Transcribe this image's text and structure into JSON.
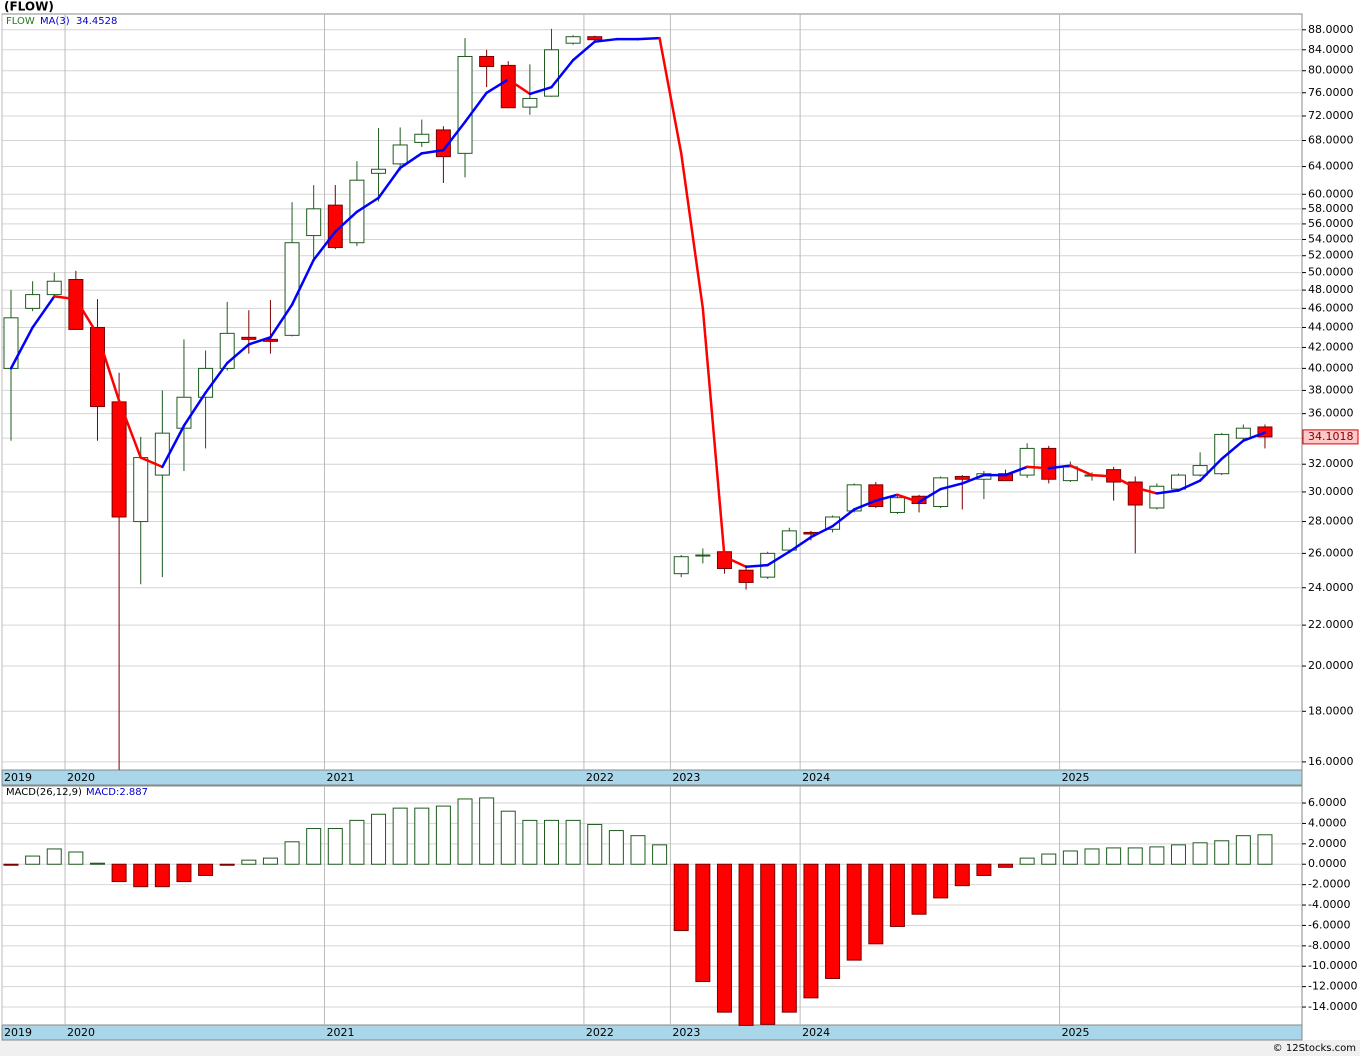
{
  "chart_data": [
    {
      "type": "candlestick",
      "title": "(FLOW)",
      "series_name": "FLOW",
      "yscale": "log",
      "grid": true,
      "up_color": "#ffffff",
      "up_stroke": "#1f5a1f",
      "down_color": "#ff0000",
      "down_stroke": "#7a0000",
      "categories": [
        "2019",
        null,
        null,
        "2020",
        null,
        null,
        null,
        null,
        null,
        null,
        null,
        null,
        null,
        null,
        null,
        "2021",
        null,
        null,
        null,
        null,
        null,
        null,
        null,
        null,
        null,
        null,
        null,
        "2022",
        null,
        null,
        null,
        "2023",
        null,
        null,
        null,
        null,
        null,
        "2024",
        null,
        null,
        null,
        null,
        null,
        null,
        null,
        null,
        null,
        null,
        null,
        "2025",
        null,
        null,
        null,
        null,
        null,
        null,
        null,
        null,
        null
      ],
      "open": [
        40,
        46,
        47.5,
        49.2,
        44,
        37,
        28,
        31.2,
        34.8,
        37.4,
        40,
        43,
        42.8,
        43.2,
        54.5,
        58.5,
        53.6,
        63,
        64.4,
        67.7,
        69.7,
        66,
        82.7,
        81,
        73.5,
        75.4,
        85.3,
        86.6,
        null,
        null,
        null,
        24.8,
        25.9,
        26.1,
        25,
        24.6,
        26.2,
        27.3,
        27.5,
        28.7,
        30.5,
        28.6,
        29.7,
        29,
        31.1,
        30.9,
        31.3,
        31.2,
        33.2,
        30.8,
        31.2,
        31.6,
        30.7,
        28.9,
        30.2,
        31.2,
        31.3,
        34,
        34.9
      ],
      "high": [
        48,
        49,
        50,
        50.2,
        47,
        39.6,
        34.1,
        38,
        42.8,
        41.7,
        46.7,
        45.8,
        46.9,
        58.9,
        61.3,
        61.3,
        64.8,
        70,
        70.1,
        71.4,
        70.3,
        86.3,
        84,
        81.8,
        81.2,
        88.2,
        86.9,
        86.8,
        null,
        null,
        null,
        25.9,
        26.3,
        26.2,
        25.3,
        26.1,
        27.6,
        27.4,
        28.4,
        30.6,
        30.7,
        29.8,
        29.8,
        31.1,
        31.2,
        31.5,
        31.6,
        33.6,
        33.4,
        32.2,
        31.4,
        31.8,
        31.1,
        30.6,
        31.3,
        32.9,
        34.4,
        35.1,
        35.1
      ],
      "low": [
        33.8,
        45.7,
        47.2,
        43.8,
        33.8,
        15.7,
        24.2,
        24.6,
        31.5,
        33.2,
        39.8,
        41.4,
        41.4,
        43.1,
        51.4,
        52.8,
        53.2,
        59,
        63.4,
        67,
        61.6,
        62.4,
        77,
        73.3,
        72.2,
        75.3,
        85,
        85.7,
        null,
        null,
        null,
        24.6,
        25.4,
        24.8,
        23.9,
        24.5,
        26.1,
        26.8,
        27.3,
        28.6,
        28.9,
        28.5,
        28.6,
        28.9,
        28.8,
        29.5,
        30.8,
        31,
        30.6,
        30.7,
        30.8,
        29.4,
        26,
        28.8,
        30.1,
        31.1,
        31.2,
        33.9,
        33.2
      ],
      "close": [
        45,
        47.5,
        49,
        43.8,
        36.6,
        28.3,
        32.5,
        34.4,
        37.4,
        40,
        43.4,
        42.8,
        42.6,
        53.6,
        58,
        53,
        62,
        63.6,
        67.3,
        69,
        65.5,
        82.7,
        80.8,
        73.4,
        75,
        84,
        86.6,
        86,
        null,
        null,
        null,
        25.8,
        25.9,
        25.1,
        24.3,
        26,
        27.4,
        27.2,
        28.3,
        30.5,
        29,
        29.6,
        29.2,
        31,
        30.9,
        31.3,
        30.8,
        33.2,
        30.9,
        31.8,
        31.2,
        30.7,
        29.1,
        30.4,
        31.2,
        31.9,
        34.3,
        34.8,
        34.1018
      ],
      "ma": {
        "name": "MA(3)",
        "color": "#0000ff",
        "down_color": "#ff0000",
        "values": [
          40,
          44,
          47.3,
          47,
          43.3,
          37.1,
          32.5,
          31.8,
          35,
          37.8,
          40.5,
          42.3,
          43,
          46.4,
          51.5,
          55,
          57.6,
          59.5,
          63.8,
          66,
          66.5,
          71,
          76,
          78.4,
          75.8,
          77,
          82,
          85.6,
          86.1,
          86.1,
          86.3,
          66,
          46,
          25.8,
          25.2,
          25.3,
          26.1,
          27,
          27.7,
          28.8,
          29.4,
          29.8,
          29.3,
          30.2,
          30.6,
          31.2,
          31.2,
          31.8,
          31.7,
          31.9,
          31.2,
          31.1,
          30.3,
          29.9,
          30.1,
          30.8,
          32.4,
          33.8,
          34.4528
        ]
      },
      "ylim": [
        15.7,
        91.3
      ],
      "yticks": [
        {
          "value": 88,
          "label": "88.0000"
        },
        {
          "value": 84,
          "label": "84.0000"
        },
        {
          "value": 80,
          "label": "80.0000"
        },
        {
          "value": 76,
          "label": "76.0000"
        },
        {
          "value": 72,
          "label": "72.0000"
        },
        {
          "value": 68,
          "label": "68.0000"
        },
        {
          "value": 64,
          "label": "64.0000"
        },
        {
          "value": 60,
          "label": "60.0000"
        },
        {
          "value": 58,
          "label": "58.0000"
        },
        {
          "value": 56,
          "label": "56.0000"
        },
        {
          "value": 54,
          "label": "54.0000"
        },
        {
          "value": 52,
          "label": "52.0000"
        },
        {
          "value": 50,
          "label": "50.0000"
        },
        {
          "value": 48,
          "label": "48.0000"
        },
        {
          "value": 46,
          "label": "46.0000"
        },
        {
          "value": 44,
          "label": "44.0000"
        },
        {
          "value": 42,
          "label": "42.0000"
        },
        {
          "value": 40,
          "label": "40.0000"
        },
        {
          "value": 38,
          "label": "38.0000"
        },
        {
          "value": 36,
          "label": "36.0000"
        },
        {
          "value": 34,
          "label": "34.0000"
        },
        {
          "value": 32,
          "label": "32.0000"
        },
        {
          "value": 30,
          "label": "30.0000"
        },
        {
          "value": 28,
          "label": "28.0000"
        },
        {
          "value": 26,
          "label": "26.0000"
        },
        {
          "value": 24,
          "label": "24.0000"
        },
        {
          "value": 22,
          "label": "22.0000"
        },
        {
          "value": 20,
          "label": "20.0000"
        },
        {
          "value": 18,
          "label": "18.0000"
        },
        {
          "value": 16,
          "label": "16.0000"
        }
      ]
    },
    {
      "type": "bar",
      "series_name": "MACD(26,12,9)",
      "grid": true,
      "up_color": "#ffffff",
      "up_stroke": "#1f5a1f",
      "down_color": "#ff0000",
      "down_stroke": "#7a0000",
      "categories": [
        "2019",
        null,
        null,
        "2020",
        null,
        null,
        null,
        null,
        null,
        null,
        null,
        null,
        null,
        null,
        null,
        "2021",
        null,
        null,
        null,
        null,
        null,
        null,
        null,
        null,
        null,
        null,
        null,
        "2022",
        null,
        null,
        null,
        "2023",
        null,
        null,
        null,
        null,
        null,
        "2024",
        null,
        null,
        null,
        null,
        null,
        null,
        null,
        null,
        null,
        null,
        null,
        "2025",
        null,
        null,
        null,
        null,
        null,
        null,
        null,
        null,
        null
      ],
      "values": [
        -0.1,
        0.8,
        1.5,
        1.2,
        0.1,
        -1.7,
        -2.2,
        -2.2,
        -1.7,
        -1.1,
        -0.1,
        0.4,
        0.6,
        2.2,
        3.5,
        3.5,
        4.3,
        4.9,
        5.5,
        5.5,
        5.7,
        6.4,
        6.5,
        5.2,
        4.3,
        4.3,
        4.3,
        3.9,
        3.3,
        2.8,
        1.9,
        -6.5,
        -11.5,
        -14.5,
        -15.8,
        -15.7,
        -14.5,
        -13.1,
        -11.2,
        -9.4,
        -7.8,
        -6.1,
        -4.9,
        -3.3,
        -2.1,
        -1.1,
        -0.3,
        0.6,
        1,
        1.3,
        1.5,
        1.6,
        1.6,
        1.7,
        1.9,
        2.1,
        2.3,
        2.8,
        2.887
      ],
      "value_label": "MACD:2.887",
      "ylim": [
        -15.76,
        7.67
      ],
      "yticks": [
        {
          "value": 6,
          "label": "6.0000"
        },
        {
          "value": 4,
          "label": "4.0000"
        },
        {
          "value": 2,
          "label": "2.0000"
        },
        {
          "value": 0,
          "label": "0.0000"
        },
        {
          "value": -2,
          "label": "-2.0000"
        },
        {
          "value": -4,
          "label": "-4.0000"
        },
        {
          "value": -6,
          "label": "-6.0000"
        },
        {
          "value": -8,
          "label": "-8.0000"
        },
        {
          "value": -10,
          "label": "-10.0000"
        },
        {
          "value": -12,
          "label": "-12.0000"
        },
        {
          "value": -14,
          "label": "-14.0000"
        }
      ]
    }
  ],
  "footer": "© 12Stocks.com"
}
